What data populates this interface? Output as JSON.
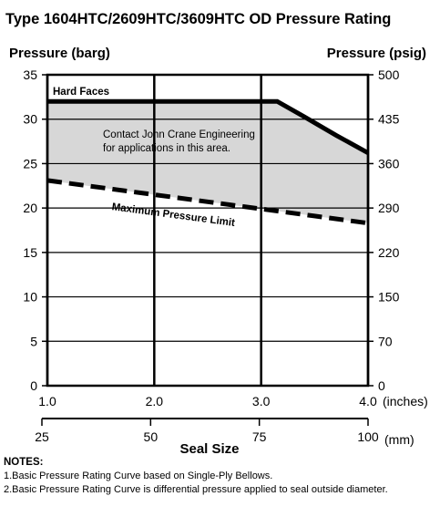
{
  "chart_data": {
    "type": "area",
    "title": "Type 1604HTC/2609HTC/3609HTC OD Pressure Rating",
    "ylabel_left": "Pressure (barg)",
    "ylabel_right": "Pressure (psig)",
    "xlabel": "Seal Size",
    "x_unit_top": "(inches)",
    "x_unit_bottom": "(mm)",
    "xlim": [
      1.0,
      4.0
    ],
    "ylim": [
      0,
      35
    ],
    "x_ticks_top": [
      "1.0",
      "2.0",
      "3.0",
      "4.0"
    ],
    "x_ticks_bottom": [
      "25",
      "50",
      "75",
      "100"
    ],
    "y_ticks_left": [
      "0",
      "5",
      "10",
      "15",
      "20",
      "25",
      "30",
      "35"
    ],
    "y_ticks_right": [
      "0",
      "70",
      "150",
      "220",
      "290",
      "360",
      "435",
      "500"
    ],
    "grid": true,
    "series": [
      {
        "name": "Hard Faces",
        "x": [
          1.0,
          3.15,
          3.4,
          3.7,
          4.0
        ],
        "y": [
          32,
          32,
          30.3,
          28.2,
          26.2
        ]
      },
      {
        "name": "Maximum Pressure Limit",
        "x": [
          1.0,
          1.5,
          2.0,
          2.5,
          3.0,
          3.5,
          4.0
        ],
        "y": [
          23.1,
          22.3,
          21.5,
          20.7,
          19.9,
          19.1,
          18.3
        ]
      }
    ],
    "annotations": [
      "Contact John Crane Engineering",
      "for applications in this area."
    ]
  },
  "notes": {
    "heading": "NOTES:",
    "items": [
      "1.Basic Pressure Rating Curve based on Single-Ply Bellows.",
      "2.Basic Pressure Rating Curve is differential pressure applied to seal outside diameter."
    ]
  },
  "colors": {
    "shaded_region": "#d7d7d7",
    "line": "#000000"
  }
}
